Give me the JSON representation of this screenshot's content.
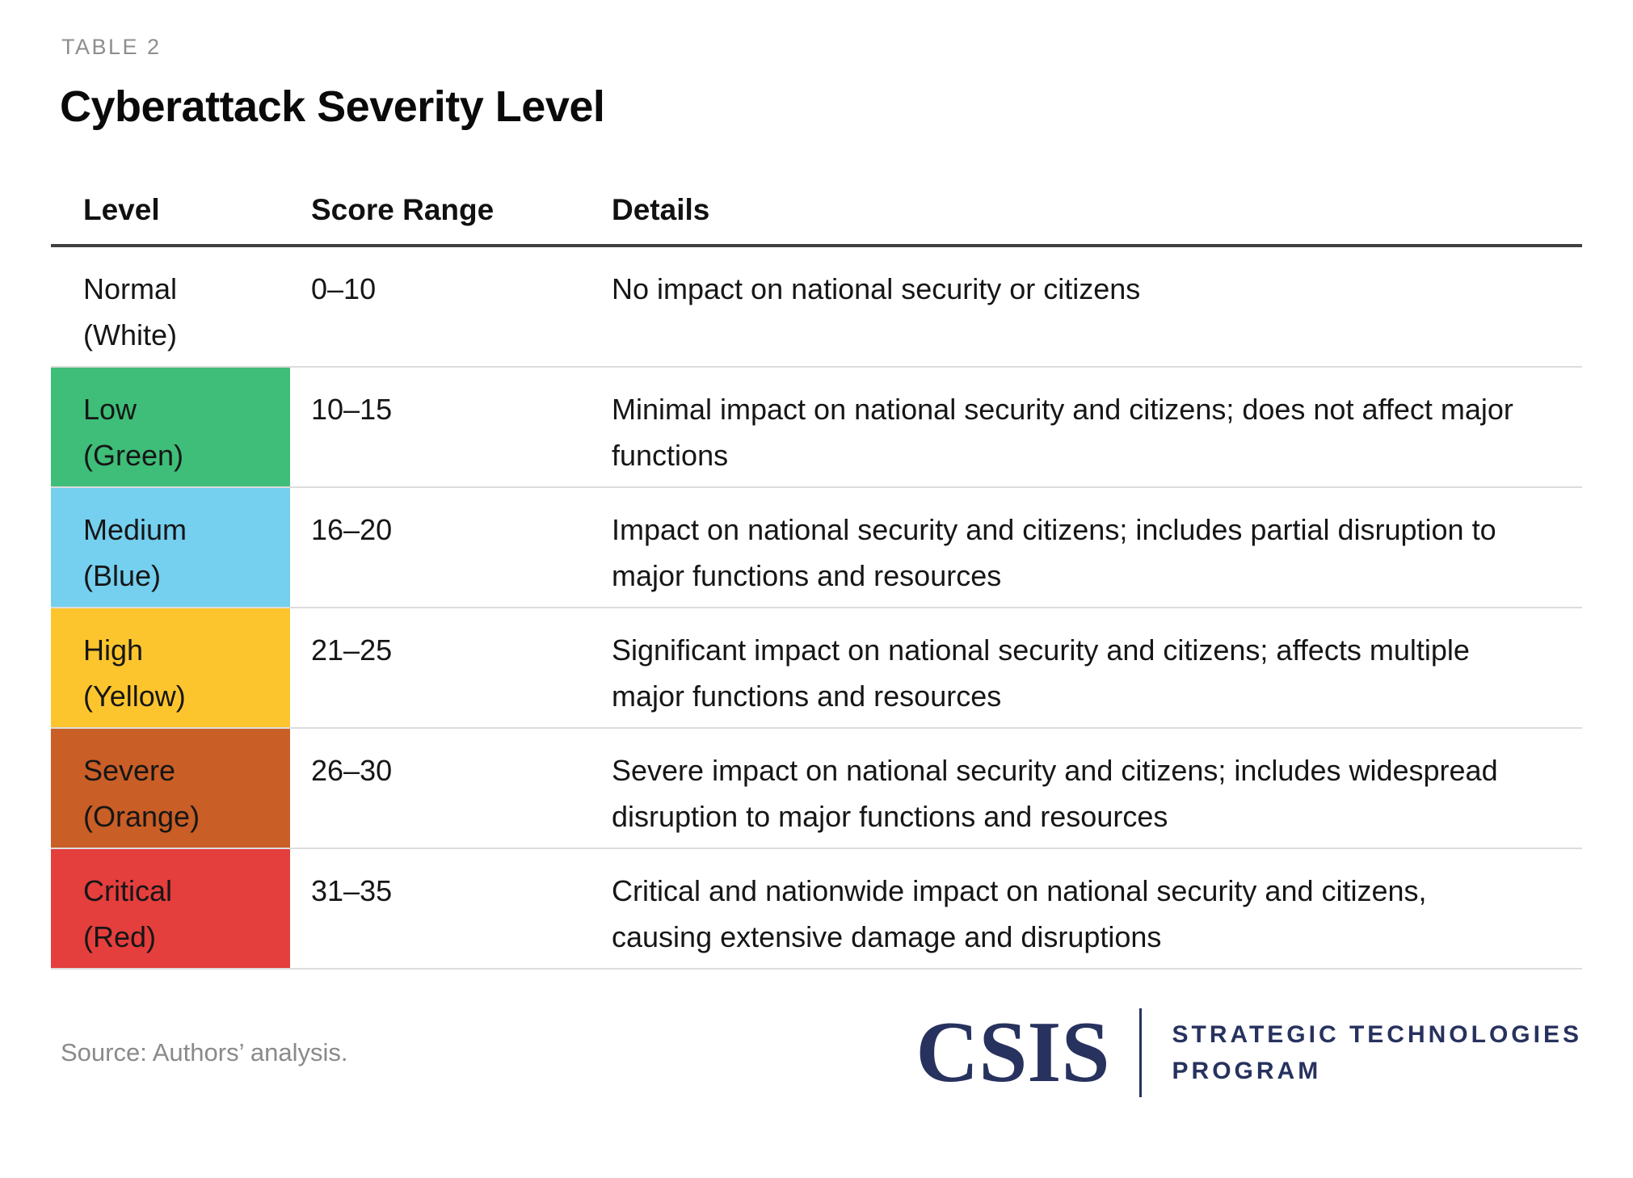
{
  "page": {
    "table_label": "TABLE 2",
    "title": "Cyberattack Severity Level",
    "source": "Source: Authors’ analysis.",
    "logo": {
      "wordmark": "CSIS",
      "program_line1": "STRATEGIC TECHNOLOGIES",
      "program_line2": "PROGRAM",
      "navy": "#27325e"
    }
  },
  "table": {
    "columns": [
      "Level",
      "Score Range",
      "Details"
    ],
    "rows": [
      {
        "level": "Normal",
        "paren": "(White)",
        "color_name": "white",
        "bg": "#ffffff",
        "score": "0–10",
        "details": "No impact on national security or citizens"
      },
      {
        "level": "Low",
        "paren": "(Green)",
        "color_name": "green",
        "bg": "#3ebe78",
        "score": "10–15",
        "details": "Minimal impact on national security and citizens; does not affect major functions"
      },
      {
        "level": "Medium",
        "paren": "(Blue)",
        "color_name": "blue",
        "bg": "#75cfee",
        "score": "16–20",
        "details": "Impact on national security and citizens; includes partial disruption to major functions and resources"
      },
      {
        "level": "High",
        "paren": "(Yellow)",
        "color_name": "yellow",
        "bg": "#fdc52d",
        "score": "21–25",
        "details": "Significant impact on national security and citizens; affects multiple major functions and resources"
      },
      {
        "level": "Severe",
        "paren": "(Orange)",
        "color_name": "orange",
        "bg": "#c95e26",
        "score": "26–30",
        "details": "Severe impact on national security and citizens; includes widespread disruption to major functions and resources"
      },
      {
        "level": "Critical",
        "paren": "(Red)",
        "color_name": "red",
        "bg": "#e43e3d",
        "score": "31–35",
        "details": "Critical and nationwide impact on national security and citizens, causing extensive damage and disruptions"
      }
    ]
  }
}
